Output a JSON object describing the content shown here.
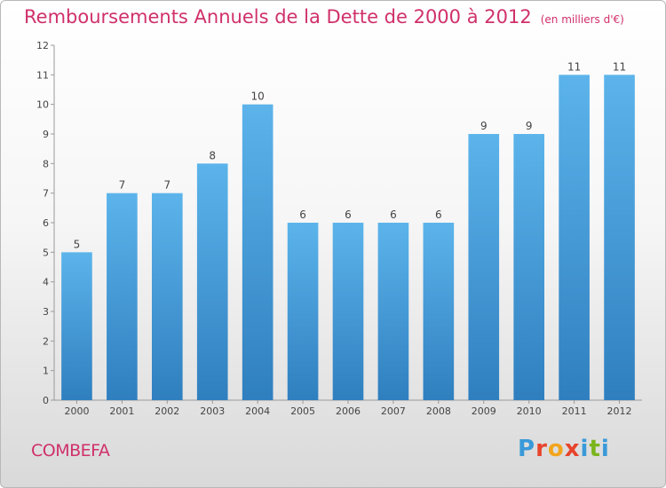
{
  "title": "Remboursements Annuels de la Dette de 2000 à 2012",
  "subtitle": "(en milliers d'€)",
  "commune": "COMBEFA",
  "brand": {
    "letters": [
      "P",
      "r",
      "o",
      "x",
      "i",
      "t",
      "i"
    ],
    "colors": [
      "#3a9ad9",
      "#e8442c",
      "#f2a51c",
      "#e8442c",
      "#3a9ad9",
      "#7ab51d",
      "#3a9ad9"
    ]
  },
  "colors": {
    "title": "#d0306a",
    "bar_light": "#5cb4eb",
    "bar_dark": "#2f7fbf"
  },
  "chart_data": {
    "type": "bar",
    "categories": [
      "2000",
      "2001",
      "2002",
      "2003",
      "2004",
      "2005",
      "2006",
      "2007",
      "2008",
      "2009",
      "2010",
      "2011",
      "2012"
    ],
    "values": [
      5,
      7,
      7,
      8,
      10,
      6,
      6,
      6,
      6,
      9,
      9,
      11,
      11
    ],
    "yticks": [
      0,
      1,
      2,
      3,
      4,
      5,
      6,
      7,
      8,
      9,
      10,
      11,
      12
    ],
    "ylim": [
      0,
      12
    ],
    "grid": false,
    "data_labels": true
  }
}
